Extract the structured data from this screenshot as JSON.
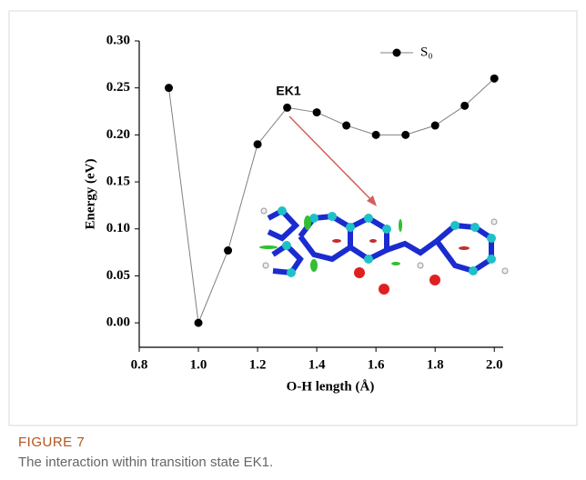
{
  "chart_data": {
    "type": "line",
    "x": [
      0.9,
      1.0,
      1.1,
      1.2,
      1.3,
      1.4,
      1.5,
      1.6,
      1.7,
      1.8,
      1.9,
      2.0
    ],
    "series": [
      {
        "name": "S₀",
        "color": "#000000",
        "line_color": "#808080",
        "values": [
          0.25,
          0.0,
          0.077,
          0.19,
          0.229,
          0.224,
          0.21,
          0.2,
          0.2,
          0.21,
          0.231,
          0.26
        ]
      }
    ],
    "xlim": [
      0.8,
      2.03
    ],
    "ylim": [
      -0.026,
      0.3
    ],
    "xticks": [
      0.8,
      {
        "value": 1.0,
        "label": "1.0"
      },
      1.2,
      1.4,
      1.6,
      1.8,
      {
        "value": 2.0,
        "label": "2.0"
      }
    ],
    "yticks": [
      {
        "value": 0,
        "label": "0.00"
      },
      0.05,
      {
        "value": 0.1,
        "label": "0.10"
      },
      0.15,
      {
        "value": 0.2,
        "label": "0.20"
      },
      0.25,
      {
        "value": 0.3,
        "label": "0.30"
      }
    ],
    "xlabel": "O-H length (Å)",
    "ylabel": "Energy (eV)",
    "annotation": "EK1",
    "legend": "upper right"
  },
  "caption": {
    "label": "FIGURE 7",
    "text": "The interaction within transition state EK1."
  }
}
